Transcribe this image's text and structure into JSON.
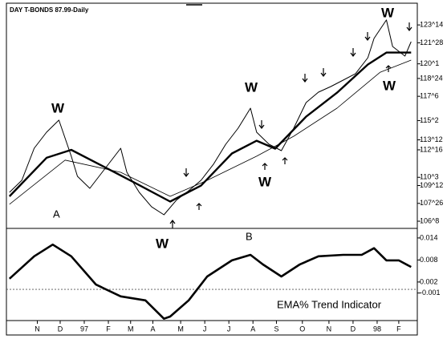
{
  "chart_data": [
    {
      "type": "line",
      "title": "DAY T-BONDS 87.99-Daily",
      "xlim": [
        -0.5,
        66
      ],
      "ylim": [
        105.62,
        125.27
      ],
      "yticks": [
        {
          "value": 123.4375,
          "label": "123^14"
        },
        {
          "value": 121.875,
          "label": "121^28"
        },
        {
          "value": 120.03125,
          "label": "120^1"
        },
        {
          "value": 118.75,
          "label": "118^24"
        },
        {
          "value": 117.1875,
          "label": "117^6"
        },
        {
          "value": 115.0625,
          "label": "115^2"
        },
        {
          "value": 113.375,
          "label": "113^12"
        },
        {
          "value": 112.5,
          "label": "112^16"
        },
        {
          "value": 110.09375,
          "label": "110^3"
        },
        {
          "value": 109.375,
          "label": "109^12"
        },
        {
          "value": 107.8125,
          "label": "107^26"
        },
        {
          "value": 106.25,
          "label": "106^8"
        }
      ],
      "series": [
        {
          "color": "#000000",
          "width": 1,
          "x": [
            0,
            2,
            4,
            6,
            8,
            10,
            11,
            13,
            15,
            18,
            19,
            21,
            23,
            25,
            27,
            29,
            31,
            33,
            35,
            37,
            39,
            40,
            42,
            44,
            46,
            48,
            50,
            52,
            54,
            56,
            58,
            59,
            61,
            62,
            64,
            65
          ],
          "values": [
            108.78,
            109.83,
            112.64,
            114.04,
            115.1,
            111.94,
            110.18,
            109.13,
            110.53,
            112.64,
            110.53,
            108.78,
            107.51,
            106.81,
            108.08,
            108.92,
            109.83,
            111.23,
            112.99,
            114.39,
            116.15,
            114.04,
            112.99,
            112.43,
            114.39,
            116.64,
            117.55,
            118.04,
            118.6,
            119.17,
            120.57,
            122.26,
            123.87,
            121.55,
            120.71,
            121.97
          ]
        },
        {
          "color": "#000000",
          "width": 2.4,
          "x": [
            0,
            6,
            10,
            15,
            20,
            26,
            31,
            36,
            40,
            43,
            48,
            53,
            58,
            61,
            65
          ],
          "values": [
            108.43,
            111.8,
            112.5,
            111.1,
            109.7,
            107.97,
            109.37,
            112.18,
            113.3,
            112.6,
            115.4,
            117.5,
            119.97,
            121.02,
            121.02
          ]
        },
        {
          "color": "#000000",
          "width": 0.8,
          "x": [
            0,
            9,
            18,
            26,
            32,
            40,
            46,
            53,
            60,
            65
          ],
          "values": [
            107.73,
            111.6,
            110.53,
            108.43,
            109.83,
            111.94,
            113.69,
            116.15,
            119.3,
            120.36
          ]
        }
      ],
      "annotations": [
        "W",
        "W",
        "W",
        "W",
        "W",
        "W",
        "A",
        "B"
      ]
    },
    {
      "type": "line",
      "title": "EMA% Trend Indicator",
      "xlim": [
        -0.5,
        66
      ],
      "ylim": [
        -0.0085,
        0.0166
      ],
      "reference_line": 0,
      "yticks": [
        0.014,
        0.008,
        0.002,
        -0.001
      ],
      "xticks": [
        {
          "value": 4.5,
          "label": "N"
        },
        {
          "value": 8.2,
          "label": "D"
        },
        {
          "value": 12.1,
          "label": "97"
        },
        {
          "value": 16,
          "label": "F"
        },
        {
          "value": 19.6,
          "label": "M"
        },
        {
          "value": 23.2,
          "label": "A"
        },
        {
          "value": 27.7,
          "label": "M"
        },
        {
          "value": 31.6,
          "label": "J"
        },
        {
          "value": 35.5,
          "label": "J"
        },
        {
          "value": 39.4,
          "label": "A"
        },
        {
          "value": 43.2,
          "label": "S"
        },
        {
          "value": 47.4,
          "label": "O"
        },
        {
          "value": 51.7,
          "label": "N"
        },
        {
          "value": 55.6,
          "label": "D"
        },
        {
          "value": 59.5,
          "label": "98"
        },
        {
          "value": 63,
          "label": "F"
        }
      ],
      "series": [
        {
          "color": "#000000",
          "width": 2.6,
          "x": [
            0,
            4,
            7,
            10,
            14,
            18,
            22,
            25,
            26,
            29,
            32,
            36,
            39,
            41,
            44,
            47,
            50,
            54,
            57,
            59,
            61,
            63,
            65
          ],
          "values": [
            0.0029,
            0.009,
            0.0122,
            0.009,
            0.0013,
            -0.0019,
            -0.003,
            -0.008,
            -0.0074,
            -0.003,
            0.0035,
            0.0079,
            0.0094,
            0.0068,
            0.0035,
            0.0068,
            0.009,
            0.0094,
            0.0094,
            0.0112,
            0.0079,
            0.0079,
            0.0061
          ]
        }
      ]
    }
  ]
}
